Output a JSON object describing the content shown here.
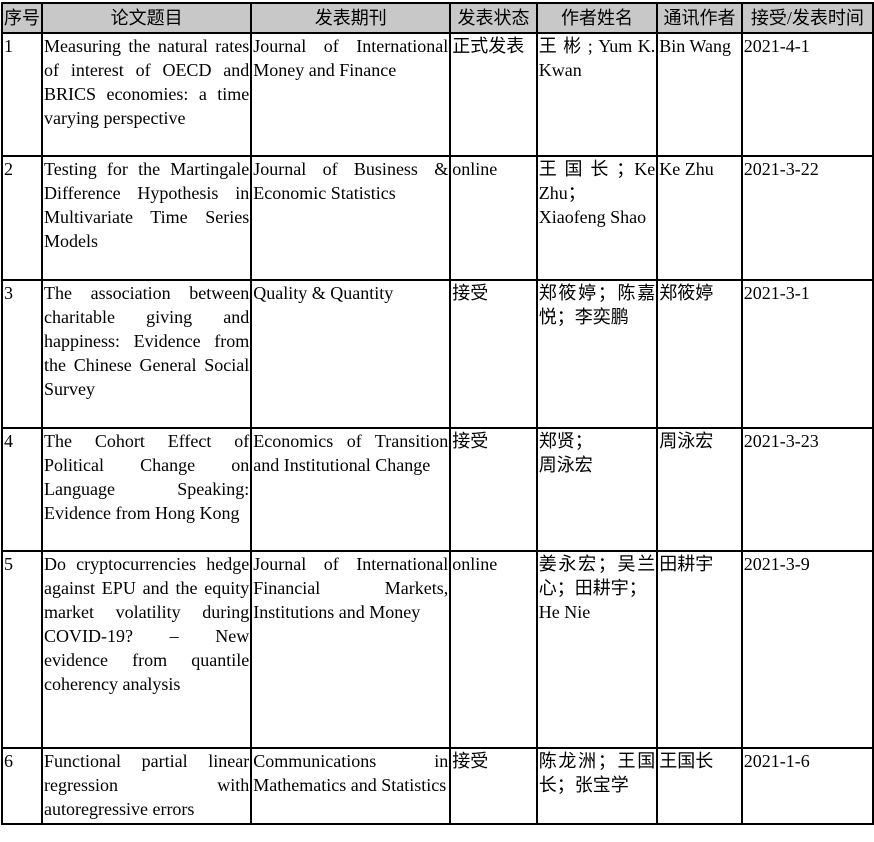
{
  "headers": [
    "序号",
    "论文题目",
    "发表期刊",
    "发表状态",
    "作者姓名",
    "通讯作者",
    "接受/发表时间"
  ],
  "rows": [
    {
      "no": "1",
      "title": "Measuring the natural rates of interest of OECD and BRICS economies: a time varying perspective",
      "journal": "Journal of International Money and Finance",
      "status": "正式发表",
      "authors": "王 彬 ; Yum K. Kwan",
      "corresponding": "Bin Wang",
      "date": "2021-4-1"
    },
    {
      "no": "2",
      "title": "Testing for the Martingale Difference Hypothesis in Multivariate Time Series Models",
      "journal": "Journal of Business & Economic Statistics",
      "status": "online",
      "authors": "王国长；Ke Zhu；\nXiaofeng Shao",
      "corresponding": "Ke Zhu",
      "date": "2021-3-22"
    },
    {
      "no": "3",
      "title": "The association between charitable giving and happiness: Evidence from the Chinese General Social Survey",
      "journal": "Quality & Quantity",
      "status": "接受",
      "authors": "郑筱婷；陈嘉悦；李奕鹏",
      "corresponding": "郑筱婷",
      "date": "2021-3-1"
    },
    {
      "no": "4",
      "title": "The Cohort Effect of Political Change on Language Speaking: Evidence from Hong Kong",
      "journal": "Economics of Transition and Institutional Change",
      "status": "接受",
      "authors": "郑贤；\n周泳宏",
      "corresponding": "周泳宏",
      "date": "2021-3-23"
    },
    {
      "no": "5",
      "title": "Do cryptocurrencies hedge against EPU and the equity market volatility during COVID-19? – New evidence from quantile coherency analysis",
      "journal": "Journal of International Financial Markets, Institutions and Money",
      "status": "online",
      "authors": "姜永宏；吴兰心；田耕宇；\n He Nie",
      "corresponding": "田耕宇",
      "date": "2021-3-9"
    },
    {
      "no": "6",
      "title": "Functional partial linear regression with autoregressive errors",
      "journal": "Communications in Mathematics and Statistics",
      "status": "接受",
      "authors": "陈龙洲；王国长；张宝学",
      "corresponding": "王国长",
      "date": "2021-1-6"
    }
  ]
}
